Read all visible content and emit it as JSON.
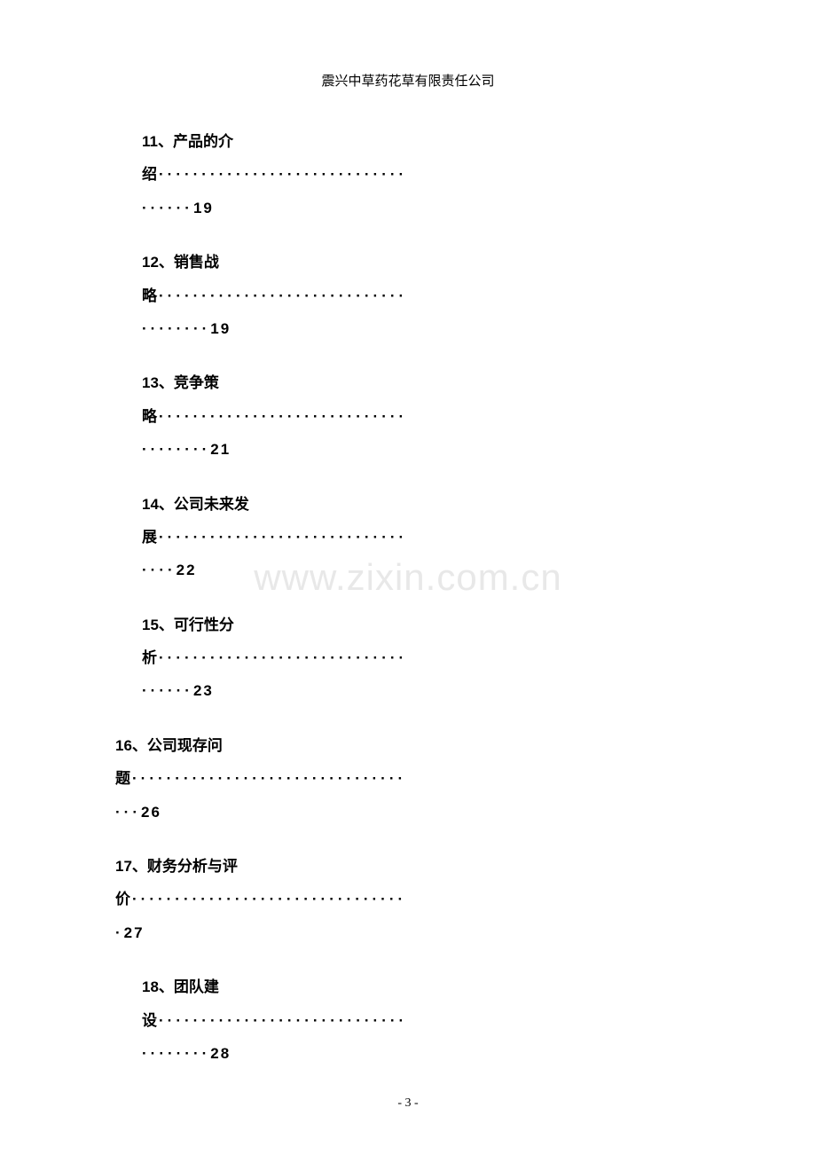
{
  "header": {
    "company_name": "震兴中草药花草有限责任公司"
  },
  "watermark": {
    "text": "www.zixin.com.cn",
    "color": "#e8e8e8",
    "fontsize": 42
  },
  "toc": {
    "font_family": "SimHei",
    "font_size": 17,
    "font_weight": "bold",
    "entries": [
      {
        "number": "11",
        "title_chars": [
          "产",
          "品",
          "的",
          "介"
        ],
        "continuation": "绍",
        "dots1": "·····························",
        "dots2": "······",
        "page": "19"
      },
      {
        "number": "12",
        "title_chars": [
          "销",
          "售",
          "战"
        ],
        "continuation": "略",
        "dots1": "·····························",
        "dots2": "········",
        "page": "19"
      },
      {
        "number": "13",
        "title_chars": [
          "竞",
          "争",
          "策"
        ],
        "continuation": "略",
        "dots1": "·····························",
        "dots2": "········",
        "page": "21"
      },
      {
        "number": "14",
        "title_chars": [
          "公",
          "司",
          "未",
          "来",
          "发"
        ],
        "continuation": "展",
        "dots1": "·····························",
        "dots2": "····",
        "page": "22"
      },
      {
        "number": "15",
        "title_chars": [
          "可",
          "行",
          "性",
          "分"
        ],
        "continuation": "析",
        "dots1": "·····························",
        "dots2": "······",
        "page": "23"
      },
      {
        "number": "16",
        "title_chars": [
          "公",
          "司",
          "现",
          "存",
          "问"
        ],
        "continuation": "题",
        "dots1": "································",
        "dots2": "···",
        "page": "26",
        "wide": true
      },
      {
        "number": "17",
        "title_chars": [
          "财",
          "务",
          "分",
          "析",
          "与",
          "评"
        ],
        "continuation": "价",
        "dots1": "································",
        "dots2": "·",
        "page": "27",
        "wide": true
      },
      {
        "number": "18",
        "title_chars": [
          "团",
          "队",
          "建"
        ],
        "continuation": "设",
        "dots1": "·····························",
        "dots2": "········",
        "page": "28"
      }
    ]
  },
  "footer": {
    "page_number": "- 3 -"
  },
  "colors": {
    "background": "#ffffff",
    "text": "#000000",
    "watermark": "#e8e8e8"
  }
}
